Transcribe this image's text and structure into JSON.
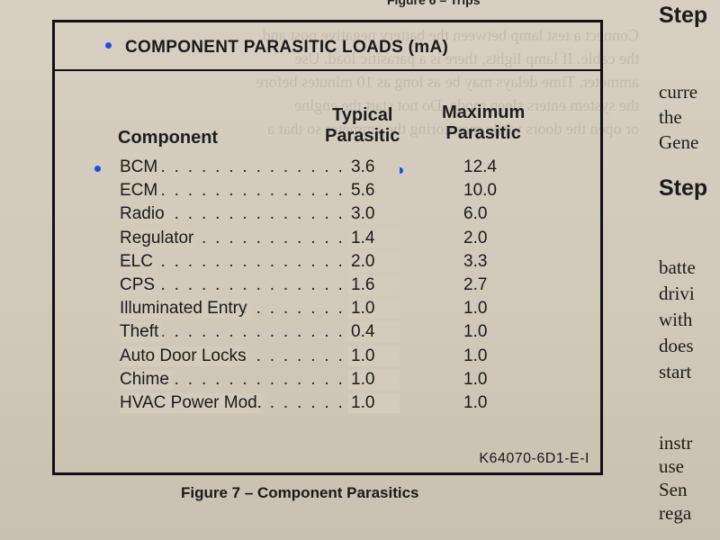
{
  "figure_above_label": "Figure 6 – Trips",
  "table": {
    "title": "COMPONENT PARASITIC LOADS (mA)",
    "headers": {
      "component": "Component",
      "typical": [
        "Typical",
        "Parasitic"
      ],
      "maximum": [
        "Maximum",
        "Parasitic"
      ]
    },
    "rows": [
      {
        "component": "BCM",
        "typical": "3.6",
        "maximum": "12.4"
      },
      {
        "component": "ECM",
        "typical": "5.6",
        "maximum": "10.0"
      },
      {
        "component": "Radio",
        "typical": "3.0",
        "maximum": "6.0"
      },
      {
        "component": "Regulator",
        "typical": "1.4",
        "maximum": "2.0"
      },
      {
        "component": "ELC",
        "typical": "2.0",
        "maximum": "3.3"
      },
      {
        "component": "CPS",
        "typical": "1.6",
        "maximum": "2.7"
      },
      {
        "component": "Illuminated Entry",
        "typical": "1.0",
        "maximum": "1.0"
      },
      {
        "component": "Theft",
        "typical": "0.4",
        "maximum": "1.0"
      },
      {
        "component": "Auto Door Locks",
        "typical": "1.0",
        "maximum": "1.0"
      },
      {
        "component": "Chime",
        "typical": "1.0",
        "maximum": "1.0"
      },
      {
        "component": "HVAC Power Mod.",
        "typical": "1.0",
        "maximum": "1.0"
      }
    ],
    "part_number": "K64070-6D1-E-I"
  },
  "caption": "Figure 7 –  Component Parasitics",
  "right_margin": {
    "heading_1": "Step",
    "lines_1": [
      "curre",
      "the",
      "Gene"
    ],
    "heading_2": "Step",
    "lines_2": [
      "batte",
      "drivi",
      "with",
      "does",
      "start"
    ],
    "lines_3": [
      "instr",
      "use",
      "Sen",
      "rega"
    ]
  },
  "colors": {
    "paper": "#d3ccbd",
    "ink": "#1a1a1a",
    "bullet": "#1f4fe0"
  }
}
